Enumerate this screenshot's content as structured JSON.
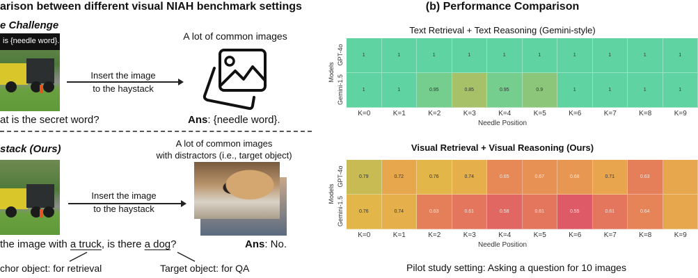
{
  "left": {
    "title": "arison between different visual NIAH benchmark settings",
    "top_panel": {
      "heading": "e Challenge",
      "image_caption": "is {needle word}.",
      "arrow_label_line1": "Insert the image",
      "arrow_label_line2": "to the haystack",
      "haystack_label": "A lot of common images",
      "haystack_icon": "image-gallery-icon",
      "question": "at is the secret word?",
      "answer_prefix": "Ans",
      "answer_text": ": {needle word}."
    },
    "bottom_panel": {
      "heading": "stack (Ours)",
      "arrow_label_line1": "Insert the image",
      "arrow_label_line2": "to the haystack",
      "haystack_label_line1": "A lot of common images",
      "haystack_label_line2": "with distractors (i.e., target object)",
      "question_part1": "the image with ",
      "anchor": "a truck",
      "question_part2": ", is there ",
      "target": "a dog",
      "question_part3": "?",
      "answer_prefix": "Ans",
      "answer_text": ": No.",
      "anchor_note": "chor object: for retrieval",
      "target_note": "Target object: for QA"
    }
  },
  "right": {
    "title": "(b) Performance Comparison",
    "footer": "Pilot study setting: Asking a question for 10 images"
  },
  "chart_data": [
    {
      "type": "heatmap",
      "title": "Text Retrieval + Text Reasoning (Gemini-style)",
      "xlabel": "Needle Position",
      "ylabel": "Models",
      "x": [
        "K=0",
        "K=1",
        "K=2",
        "K=3",
        "K=4",
        "K=5",
        "K=6",
        "K=7",
        "K=8",
        "K=9"
      ],
      "y": [
        "GPT-4o",
        "Gemini-1.5"
      ],
      "values": [
        [
          1,
          1,
          1,
          1,
          1,
          1,
          1,
          1,
          1,
          1
        ],
        [
          1,
          1,
          0.95,
          0.85,
          0.95,
          0.9,
          1,
          1,
          1,
          1
        ]
      ],
      "colormap": "red-yellow-green"
    },
    {
      "type": "heatmap",
      "title": "Visual Retrieval + Visual Reasoning (Ours)",
      "xlabel": "Needle Position",
      "ylabel": "Models",
      "x": [
        "K=0",
        "K=1",
        "K=2",
        "K=3",
        "K=4",
        "K=5",
        "K=6",
        "K=7",
        "K=8",
        "K=9"
      ],
      "y": [
        "GPT-4o",
        "Gemini-1.5"
      ],
      "values": [
        [
          0.79,
          0.72,
          0.76,
          0.74,
          0.65,
          0.67,
          0.68,
          0.71,
          0.63,
          null
        ],
        [
          0.76,
          0.74,
          0.63,
          0.61,
          0.58,
          0.61,
          0.55,
          0.61,
          0.64,
          null
        ]
      ],
      "colormap": "red-yellow-green"
    }
  ]
}
